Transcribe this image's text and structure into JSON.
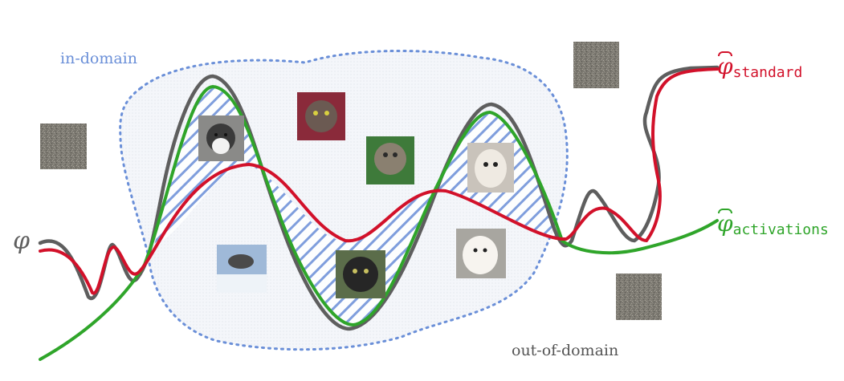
{
  "labels": {
    "in_domain": "in-domain",
    "out_of_domain": "out-of-domain",
    "phi": "φ",
    "phi_hat": "φ",
    "standard_sub": "standard",
    "activations_sub": "activations"
  },
  "images": {
    "in_domain": [
      "husky",
      "cat-tabby-1",
      "cat-tabby-2",
      "shih-tzu",
      "husky-running",
      "cat-black",
      "maltese"
    ],
    "out_of_domain": [
      "noise-patch-1",
      "noise-patch-2",
      "noise-patch-3"
    ]
  },
  "colors": {
    "in_domain": "#6a8fd8",
    "phi": "#5e5e5e",
    "standard": "#d2112a",
    "activations": "#2fa52a",
    "hatch": "#6a8fd8",
    "out_of_domain": "#555555"
  }
}
